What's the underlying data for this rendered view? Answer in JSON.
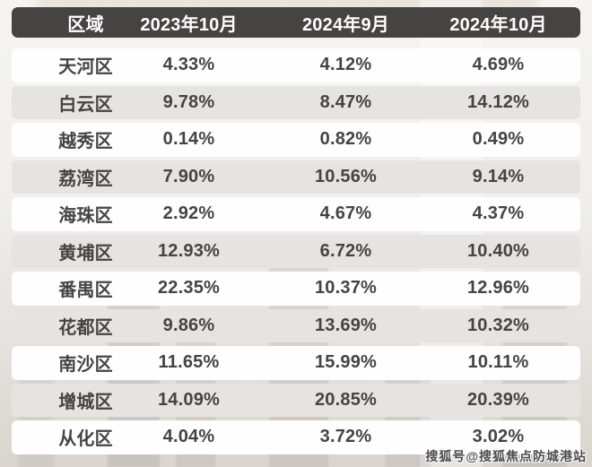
{
  "table": {
    "columns": [
      "区域",
      "2023年10月",
      "2024年9月",
      "2024年10月"
    ],
    "rows": [
      {
        "district": "天河区",
        "values": [
          "4.33%",
          "4.12%",
          "4.69%"
        ]
      },
      {
        "district": "白云区",
        "values": [
          "9.78%",
          "8.47%",
          "14.12%"
        ]
      },
      {
        "district": "越秀区",
        "values": [
          "0.14%",
          "0.82%",
          "0.49%"
        ]
      },
      {
        "district": "荔湾区",
        "values": [
          "7.90%",
          "10.56%",
          "9.14%"
        ]
      },
      {
        "district": "海珠区",
        "values": [
          "2.92%",
          "4.67%",
          "4.37%"
        ]
      },
      {
        "district": "黄埔区",
        "values": [
          "12.93%",
          "6.72%",
          "10.40%"
        ]
      },
      {
        "district": "番禺区",
        "values": [
          "22.35%",
          "10.37%",
          "12.96%"
        ]
      },
      {
        "district": "花都区",
        "values": [
          "9.86%",
          "13.69%",
          "10.32%"
        ]
      },
      {
        "district": "南沙区",
        "values": [
          "11.65%",
          "15.99%",
          "10.11%"
        ]
      },
      {
        "district": "增城区",
        "values": [
          "14.09%",
          "20.85%",
          "20.39%"
        ]
      },
      {
        "district": "从化区",
        "values": [
          "4.04%",
          "3.72%",
          "3.02%"
        ]
      }
    ]
  },
  "watermark": "搜狐号@搜狐焦点防城港站",
  "colors": {
    "header_bg": "#464343",
    "header_text": "#ffffff",
    "stripe_row_bg": "#e6e4e2",
    "plain_row_bg": "#fefefe",
    "body_text": "#454343",
    "page_bg_top": "#f6f4f2",
    "page_bg_bottom": "#d9d4ce"
  },
  "chart_data": {
    "type": "table",
    "title": "",
    "columns": [
      "区域",
      "2023年10月",
      "2024年9月",
      "2024年10月"
    ],
    "categories": [
      "天河区",
      "白云区",
      "越秀区",
      "荔湾区",
      "海珠区",
      "黄埔区",
      "番禺区",
      "花都区",
      "南沙区",
      "增城区",
      "从化区"
    ],
    "series": [
      {
        "name": "2023年10月",
        "values": [
          4.33,
          9.78,
          0.14,
          7.9,
          2.92,
          12.93,
          22.35,
          9.86,
          11.65,
          14.09,
          4.04
        ]
      },
      {
        "name": "2024年9月",
        "values": [
          4.12,
          8.47,
          0.82,
          10.56,
          4.67,
          6.72,
          10.37,
          13.69,
          15.99,
          20.85,
          3.72
        ]
      },
      {
        "name": "2024年10月",
        "values": [
          4.69,
          14.12,
          0.49,
          9.14,
          4.37,
          10.4,
          12.96,
          10.32,
          10.11,
          20.39,
          3.02
        ]
      }
    ],
    "unit": "%",
    "layout": "striped rows, dark header bar, values centered per column"
  }
}
